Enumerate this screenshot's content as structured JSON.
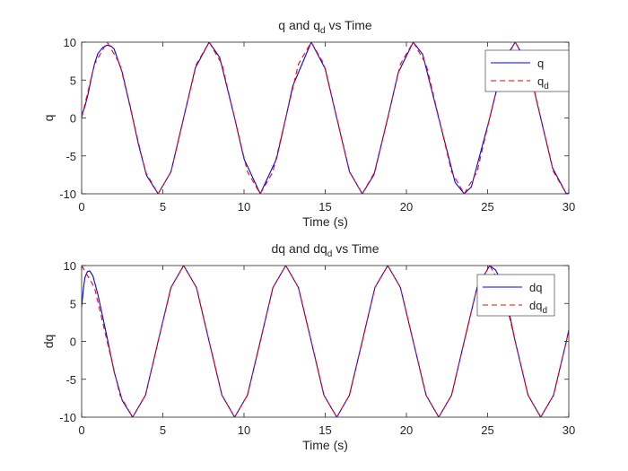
{
  "chart_data": [
    {
      "type": "line",
      "title": "q and q_d vs Time",
      "title_parts": {
        "main": "q and q",
        "sub": "d",
        "rest": " vs Time"
      },
      "xlabel": "Time (s)",
      "ylabel": "q",
      "xlim": [
        0,
        30
      ],
      "ylim": [
        -10,
        10
      ],
      "xticks": [
        0,
        5,
        10,
        15,
        20,
        25,
        30
      ],
      "yticks": [
        -10,
        -5,
        0,
        5,
        10
      ],
      "grid": false,
      "legend_position": "top-right",
      "series": [
        {
          "name": "q",
          "legend": {
            "main": "q",
            "sub": ""
          },
          "color": "#0000ff",
          "style": "solid",
          "model": "10*sin(t) with startup transient from 0",
          "x": [
            0,
            0.1,
            0.2,
            0.4,
            0.6,
            0.8,
            1.0,
            1.3,
            1.57,
            1.8,
            2.0,
            2.5,
            3.0,
            3.5,
            4.0,
            4.71,
            5.5,
            6.28,
            7.0,
            7.85,
            8.5,
            9.42,
            10.0,
            11.0,
            12.0,
            12.57,
            13.0,
            14.14,
            15.0,
            15.71,
            16.5,
            17.28,
            18.0,
            18.85,
            19.5,
            20.42,
            21.0,
            22.0,
            23.0,
            23.56,
            24.0,
            25.13,
            26.0,
            26.7,
            27.5,
            28.27,
            29.0,
            29.85,
            30.0
          ],
          "y": [
            0.5,
            0.9,
            1.5,
            3.2,
            5.3,
            7.2,
            8.5,
            9.3,
            9.6,
            9.5,
            9.1,
            6.0,
            1.4,
            -3.5,
            -7.6,
            -10.0,
            -7.1,
            0.0,
            6.6,
            10.0,
            8.0,
            0.0,
            -5.4,
            -10.0,
            -5.4,
            0.0,
            4.2,
            10.0,
            6.5,
            0.0,
            -7.1,
            -10.0,
            -7.5,
            0.0,
            6.0,
            10.0,
            8.4,
            -0.1,
            -8.5,
            -10.0,
            -9.1,
            0.0,
            7.6,
            10.0,
            7.0,
            0.0,
            -6.6,
            -10.0,
            -9.9
          ]
        },
        {
          "name": "q_d",
          "legend": {
            "main": "q",
            "sub": "d"
          },
          "color": "#ff0000",
          "style": "dashed",
          "model": "10*sin(t)",
          "x": [
            0,
            0.79,
            1.57,
            2.36,
            3.14,
            3.93,
            4.71,
            5.5,
            6.28,
            7.07,
            7.85,
            8.64,
            9.42,
            10.21,
            11.0,
            11.78,
            12.57,
            13.35,
            14.14,
            14.92,
            15.71,
            16.49,
            17.28,
            18.06,
            18.85,
            19.63,
            20.42,
            21.21,
            22.0,
            22.78,
            23.56,
            24.35,
            25.13,
            25.92,
            26.7,
            27.49,
            28.27,
            29.06,
            29.85,
            30.0
          ],
          "y": [
            0,
            7.1,
            10.0,
            7.1,
            0,
            -7.1,
            -10.0,
            -7.1,
            0,
            7.1,
            10.0,
            7.1,
            0,
            -7.1,
            -10.0,
            -7.1,
            0,
            7.1,
            10.0,
            7.1,
            0,
            -7.1,
            -10.0,
            -7.1,
            0,
            7.1,
            10.0,
            7.1,
            0,
            -7.1,
            -10.0,
            -7.1,
            0,
            7.1,
            10.0,
            7.1,
            0,
            -7.1,
            -10.0,
            -9.9
          ]
        }
      ]
    },
    {
      "type": "line",
      "title": "dq and dq_d vs Time",
      "title_parts": {
        "main": "dq and dq",
        "sub": "d",
        "rest": " vs Time"
      },
      "xlabel": "Time (s)",
      "ylabel": "dq",
      "xlim": [
        0,
        30
      ],
      "ylim": [
        -10,
        10
      ],
      "xticks": [
        0,
        5,
        10,
        15,
        20,
        25,
        30
      ],
      "yticks": [
        -10,
        -5,
        0,
        5,
        10
      ],
      "grid": false,
      "legend_position": "top-right",
      "series": [
        {
          "name": "dq",
          "legend": {
            "main": "dq",
            "sub": ""
          },
          "color": "#0000ff",
          "style": "solid",
          "model": "10*cos(t) with startup transient from ~4.5",
          "x": [
            0,
            0.1,
            0.2,
            0.35,
            0.5,
            0.7,
            1.0,
            1.57,
            2.0,
            2.5,
            3.14,
            3.93,
            4.71,
            5.5,
            6.28,
            7.07,
            7.85,
            8.64,
            9.42,
            10.21,
            11.0,
            11.78,
            12.57,
            13.35,
            14.14,
            14.92,
            15.71,
            16.49,
            17.28,
            18.06,
            18.85,
            19.63,
            20.42,
            21.21,
            21.99,
            22.78,
            23.56,
            24.35,
            25.13,
            25.5,
            26.0,
            26.7,
            27.49,
            28.27,
            29.06,
            29.85,
            30.0
          ],
          "y": [
            4.5,
            6.8,
            8.4,
            9.2,
            9.3,
            8.6,
            6.2,
            0.5,
            -4.0,
            -7.8,
            -10.0,
            -7.1,
            0,
            7.1,
            10.0,
            7.1,
            0,
            -7.1,
            -10.0,
            -7.1,
            0,
            7.1,
            10.0,
            7.1,
            0,
            -7.1,
            -10.0,
            -7.1,
            0,
            7.1,
            10.0,
            7.1,
            0,
            -7.1,
            -10.0,
            -7.1,
            0,
            7.1,
            10.0,
            9.4,
            7.2,
            0,
            -7.1,
            -10.0,
            -7.1,
            0,
            1.5
          ]
        },
        {
          "name": "dq_d",
          "legend": {
            "main": "dq",
            "sub": "d"
          },
          "color": "#ff0000",
          "style": "dashed",
          "model": "10*cos(t)",
          "x": [
            0,
            0.79,
            1.57,
            2.36,
            3.14,
            3.93,
            4.71,
            5.5,
            6.28,
            7.07,
            7.85,
            8.64,
            9.42,
            10.21,
            11.0,
            11.78,
            12.57,
            13.35,
            14.14,
            14.92,
            15.71,
            16.49,
            17.28,
            18.06,
            18.85,
            19.63,
            20.42,
            21.21,
            21.99,
            22.78,
            23.56,
            24.35,
            25.13,
            25.92,
            26.7,
            27.49,
            28.27,
            29.06,
            29.85,
            30.0
          ],
          "y": [
            10.0,
            7.1,
            0,
            -7.1,
            -10.0,
            -7.1,
            0,
            7.1,
            10.0,
            7.1,
            0,
            -7.1,
            -10.0,
            -7.1,
            0,
            7.1,
            10.0,
            7.1,
            0,
            -7.1,
            -10.0,
            -7.1,
            0,
            7.1,
            10.0,
            7.1,
            0,
            -7.1,
            -10.0,
            -7.1,
            0,
            7.1,
            10.0,
            7.1,
            0,
            -7.1,
            -10.0,
            -7.1,
            0,
            1.5
          ]
        }
      ]
    }
  ]
}
